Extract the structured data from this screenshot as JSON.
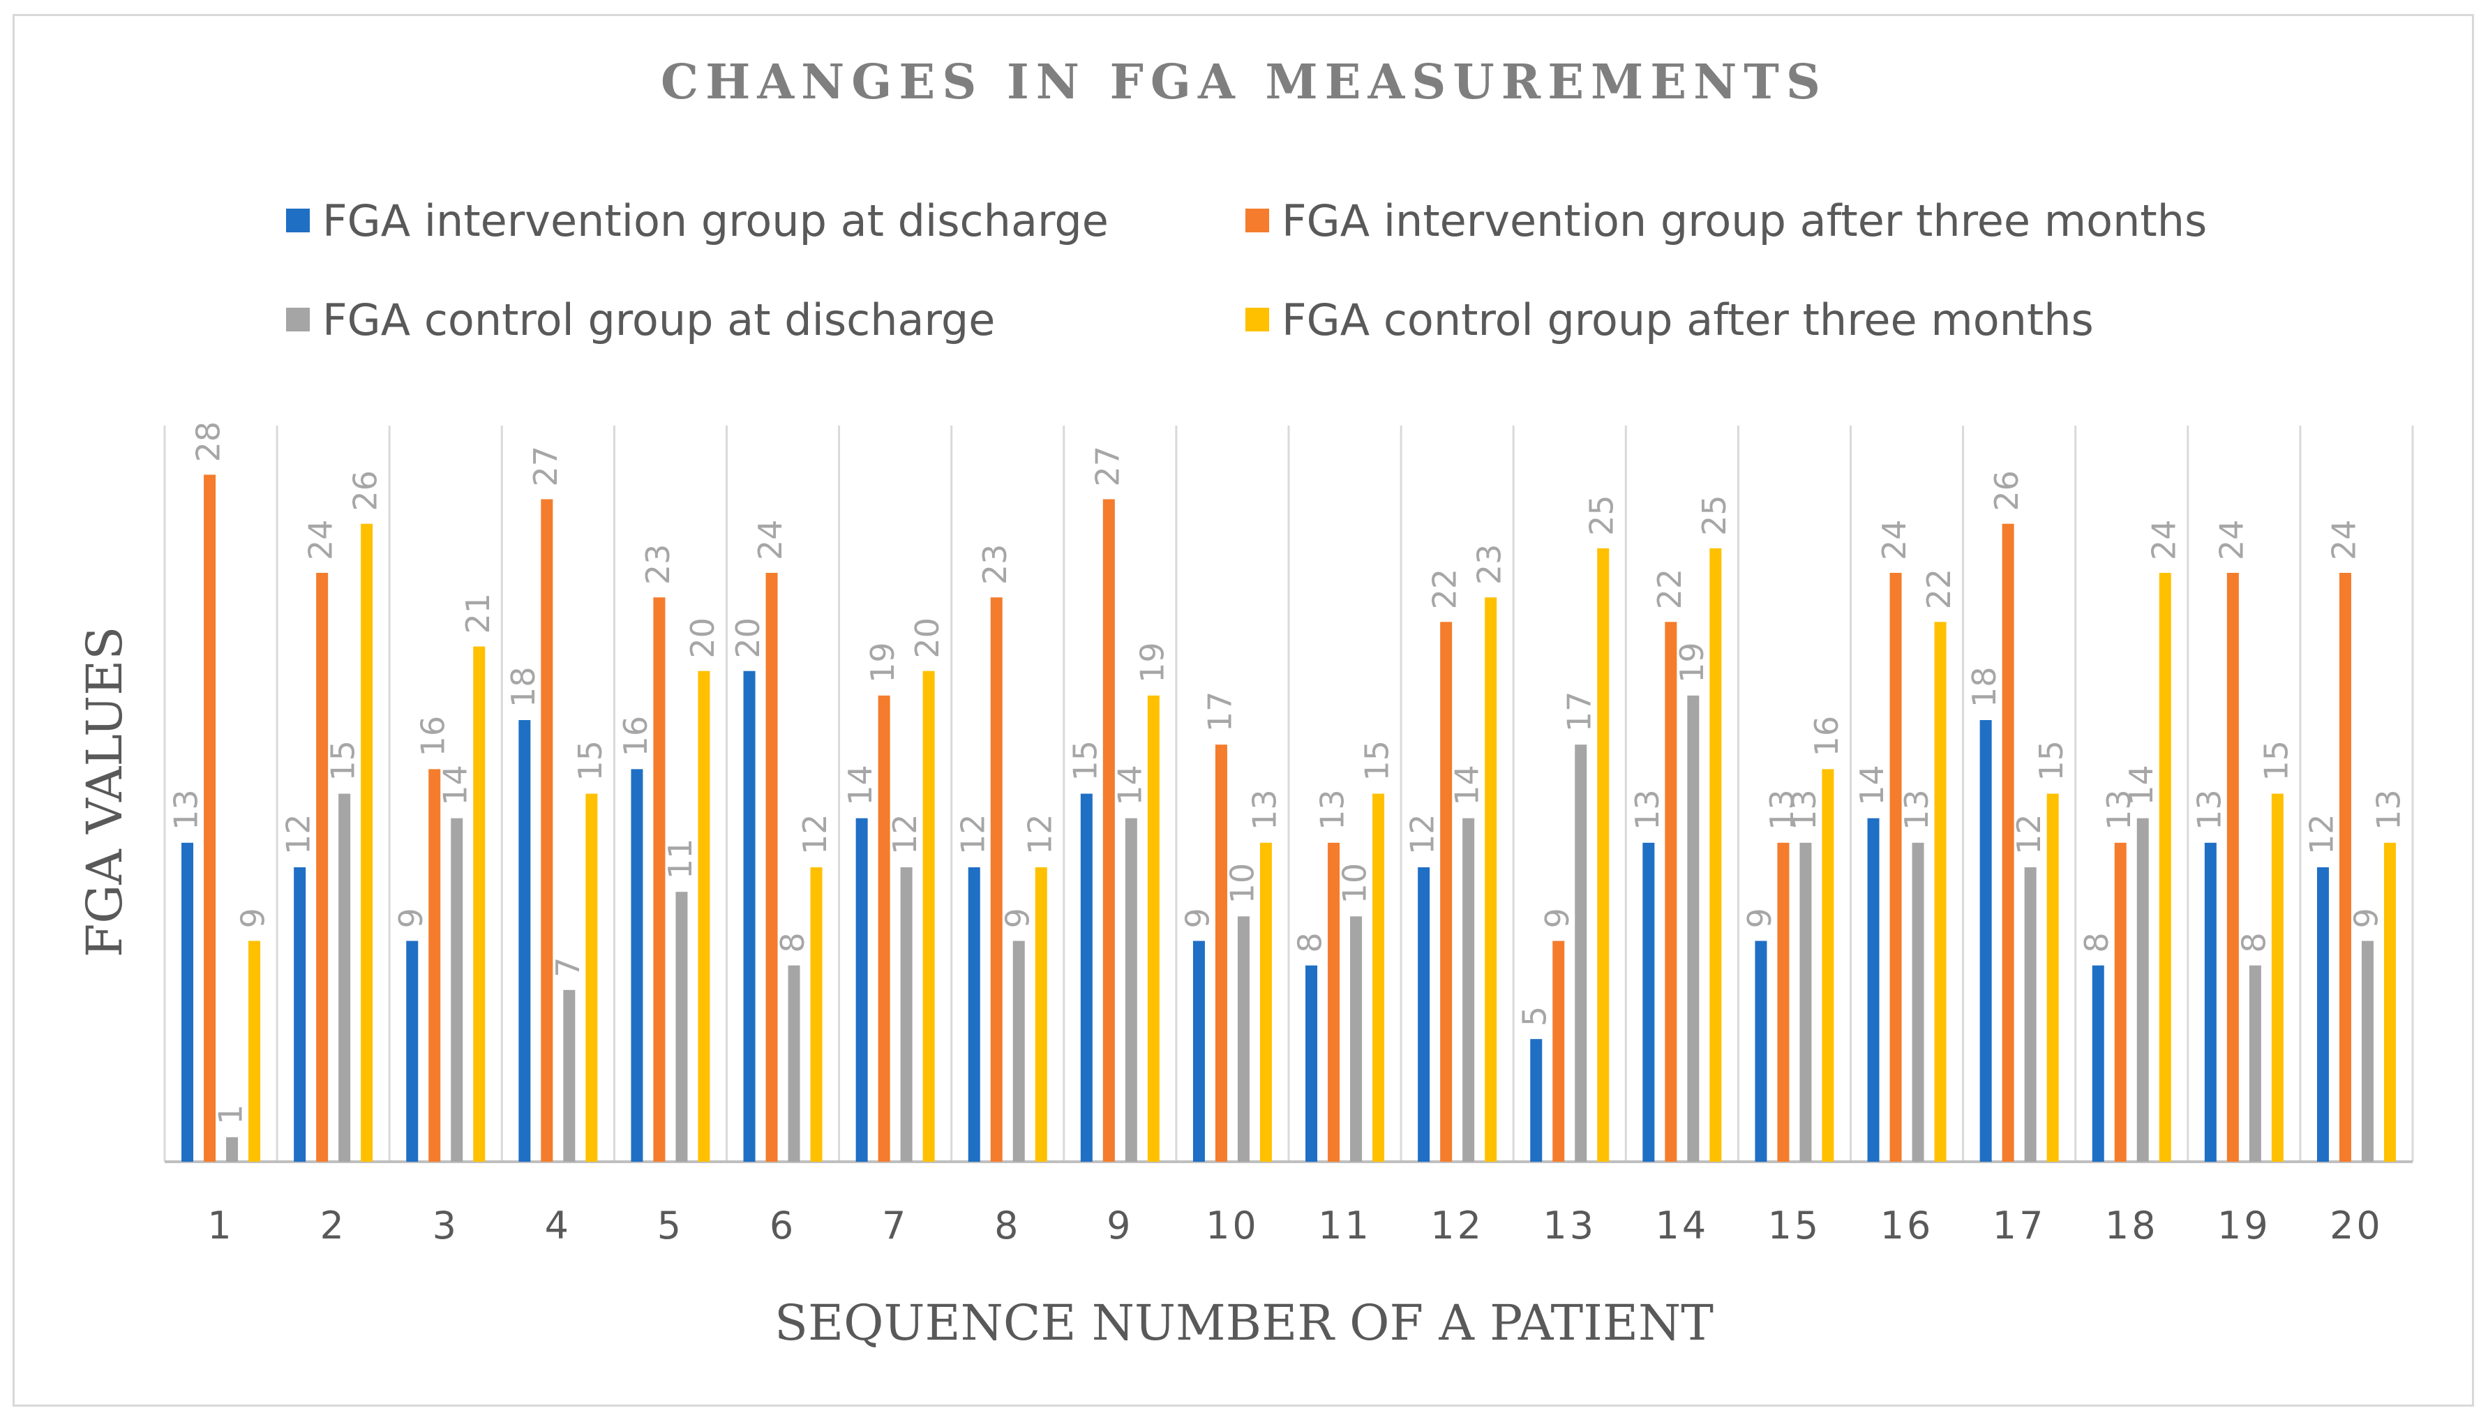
{
  "chart_data": {
    "type": "bar",
    "title": "CHANGES IN FGA MEASUREMENTS",
    "xlabel": "SEQUENCE NUMBER OF A PATIENT",
    "ylabel": "FGA VALUES",
    "categories": [
      "1",
      "2",
      "3",
      "4",
      "5",
      "6",
      "7",
      "8",
      "9",
      "10",
      "11",
      "12",
      "13",
      "14",
      "15",
      "16",
      "17",
      "18",
      "19",
      "20"
    ],
    "ylim": [
      0,
      30
    ],
    "grid": "vertical",
    "legend_position": "top",
    "series": [
      {
        "name": "FGA intervention group at discharge",
        "color": "#1f6fc5",
        "values": [
          13,
          12,
          9,
          18,
          16,
          20,
          14,
          12,
          15,
          9,
          8,
          12,
          5,
          13,
          9,
          14,
          18,
          8,
          13,
          12
        ]
      },
      {
        "name": "FGA intervention group after three months",
        "color": "#f47c2c",
        "values": [
          28,
          24,
          16,
          27,
          23,
          24,
          19,
          23,
          27,
          17,
          13,
          22,
          9,
          22,
          13,
          24,
          26,
          13,
          24,
          24
        ]
      },
      {
        "name": "FGA control group at discharge",
        "color": "#a5a5a5",
        "values": [
          1,
          15,
          14,
          7,
          11,
          8,
          12,
          9,
          14,
          10,
          10,
          14,
          17,
          19,
          13,
          13,
          12,
          14,
          8,
          9
        ]
      },
      {
        "name": "FGA control group after three months",
        "color": "#ffc000",
        "values": [
          9,
          26,
          21,
          15,
          20,
          12,
          20,
          12,
          19,
          13,
          15,
          23,
          25,
          25,
          16,
          22,
          15,
          24,
          15,
          13
        ]
      }
    ]
  }
}
